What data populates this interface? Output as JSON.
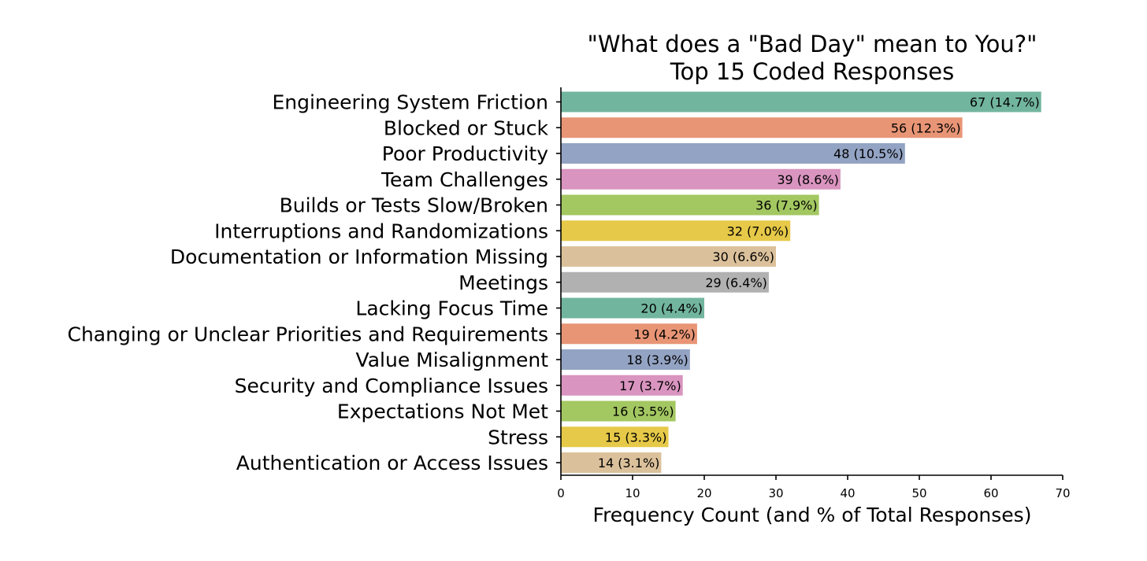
{
  "chart_data": {
    "type": "bar",
    "orientation": "horizontal",
    "title": "\"What does a \"Bad Day\" mean to You?\"",
    "subtitle": "Top 15 Coded Responses",
    "xlabel": "Frequency Count (and % of Total Responses)",
    "ylabel": "",
    "xlim": [
      0,
      70
    ],
    "xticks": [
      0,
      10,
      20,
      30,
      40,
      50,
      60,
      70
    ],
    "grid": false,
    "legend": "none",
    "bars": [
      {
        "category": "Engineering System Friction",
        "value": 67,
        "label": "67 (14.7%)",
        "color": "#72b59e"
      },
      {
        "category": "Blocked or Stuck",
        "value": 56,
        "label": "56 (12.3%)",
        "color": "#e89576"
      },
      {
        "category": "Poor Productivity",
        "value": 48,
        "label": "48 (10.5%)",
        "color": "#93a3c3"
      },
      {
        "category": "Team Challenges",
        "value": 39,
        "label": "39 (8.6%)",
        "color": "#d994bf"
      },
      {
        "category": "Builds or Tests Slow/Broken",
        "value": 36,
        "label": "36 (7.9%)",
        "color": "#a3c761"
      },
      {
        "category": "Interruptions and Randomizations",
        "value": 32,
        "label": "32 (7.0%)",
        "color": "#e6c948"
      },
      {
        "category": "Documentation or Information Missing",
        "value": 30,
        "label": "30 (6.6%)",
        "color": "#dbc19b"
      },
      {
        "category": "Meetings",
        "value": 29,
        "label": "29 (6.4%)",
        "color": "#b1b1b1"
      },
      {
        "category": "Lacking Focus Time",
        "value": 20,
        "label": "20 (4.4%)",
        "color": "#72b59e"
      },
      {
        "category": "Changing or Unclear Priorities and Requirements",
        "value": 19,
        "label": "19 (4.2%)",
        "color": "#e89576"
      },
      {
        "category": "Value Misalignment",
        "value": 18,
        "label": "18 (3.9%)",
        "color": "#93a3c3"
      },
      {
        "category": "Security and Compliance Issues",
        "value": 17,
        "label": "17 (3.7%)",
        "color": "#d994bf"
      },
      {
        "category": "Expectations Not Met",
        "value": 16,
        "label": "16 (3.5%)",
        "color": "#a3c761"
      },
      {
        "category": "Stress",
        "value": 15,
        "label": "15 (3.3%)",
        "color": "#e6c948"
      },
      {
        "category": "Authentication or Access Issues",
        "value": 14,
        "label": "14 (3.1%)",
        "color": "#dbc19b"
      }
    ]
  }
}
